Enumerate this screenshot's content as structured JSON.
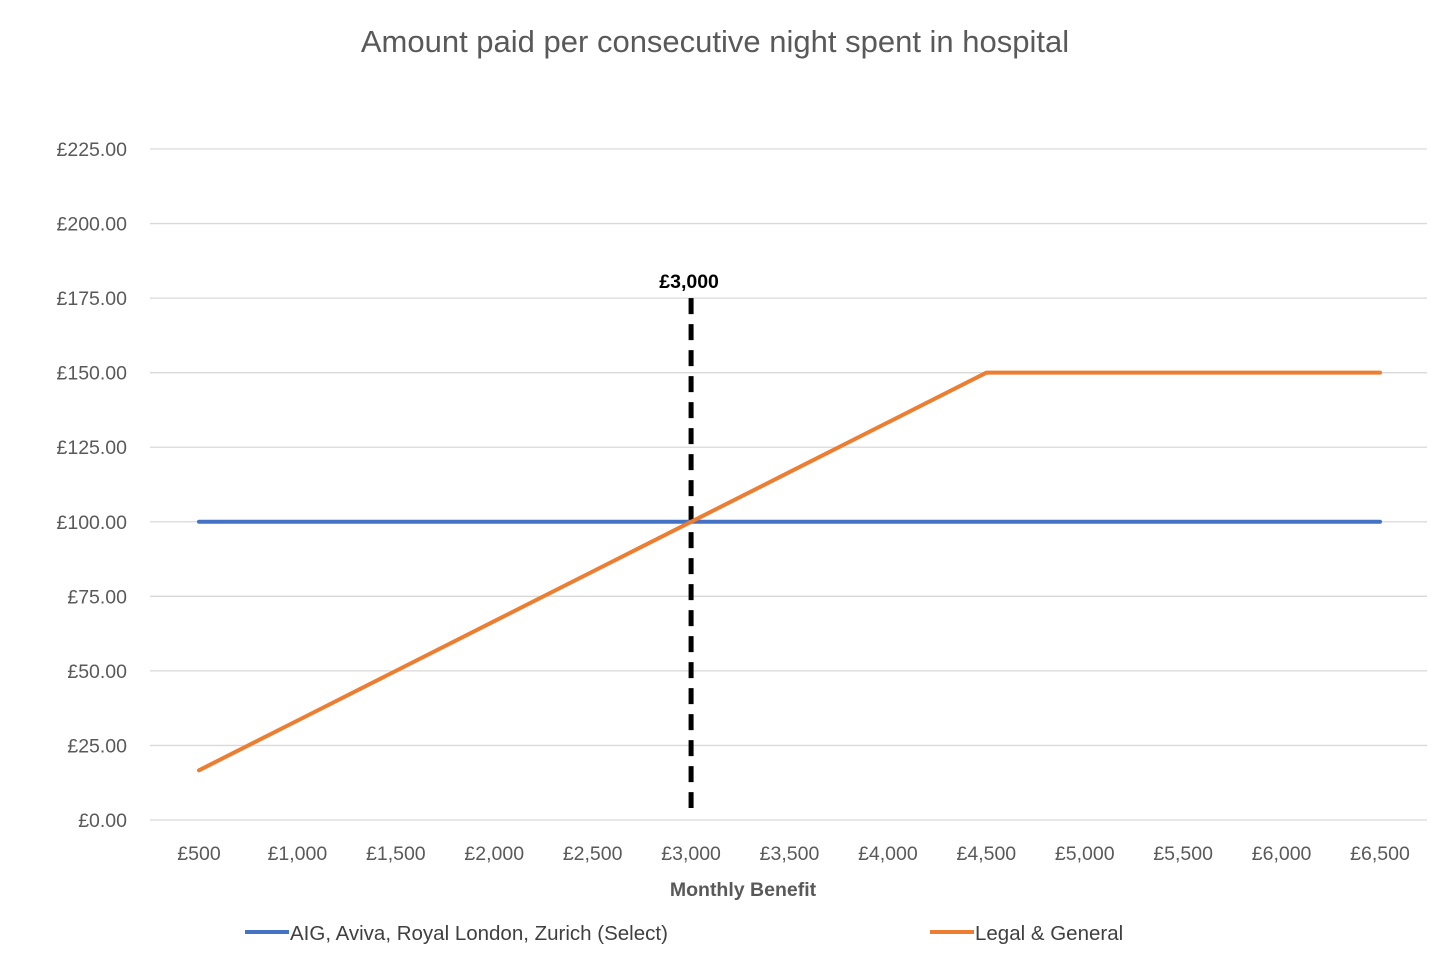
{
  "chart_data": {
    "type": "line",
    "title": "Amount paid per consecutive night spent in hospital",
    "xlabel": "Monthly Benefit",
    "ylabel": "",
    "categories": [
      "£500",
      "£1,000",
      "£1,500",
      "£2,000",
      "£2,500",
      "£3,000",
      "£3,500",
      "£4,000",
      "£4,500",
      "£5,000",
      "£5,500",
      "£6,000",
      "£6,500"
    ],
    "y_ticks": [
      "£0.00",
      "£25.00",
      "£50.00",
      "£75.00",
      "£100.00",
      "£125.00",
      "£150.00",
      "£175.00",
      "£200.00",
      "£225.00"
    ],
    "ylim": [
      0,
      225
    ],
    "grid": true,
    "legend_position": "bottom",
    "series": [
      {
        "name": "AIG, Aviva, Royal London, Zurich (Select)",
        "color": "#4472c4",
        "values": [
          100,
          100,
          100,
          100,
          100,
          100,
          100,
          100,
          100,
          100,
          100,
          100,
          100
        ]
      },
      {
        "name": "Legal & General",
        "color": "#ed7d31",
        "values": [
          16.67,
          33.33,
          50,
          66.67,
          83.33,
          100,
          116.67,
          133.33,
          150,
          150,
          150,
          150,
          150
        ]
      }
    ],
    "annotation": {
      "label": "£3,000",
      "category_index": 5,
      "line_top_value": 175,
      "color": "#000000"
    }
  }
}
